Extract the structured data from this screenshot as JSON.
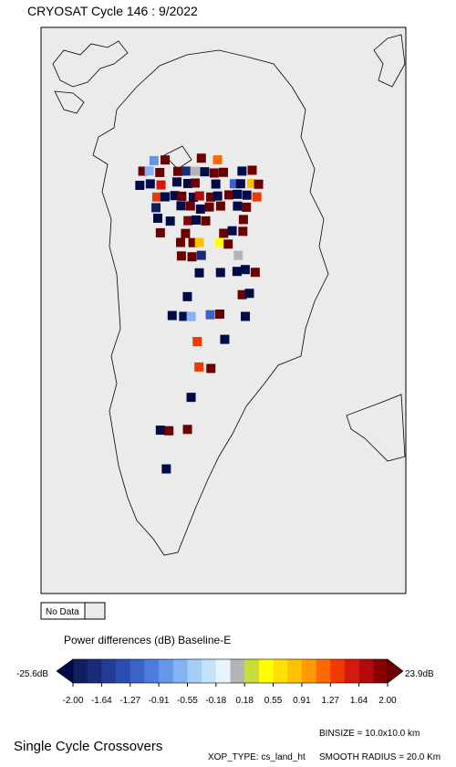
{
  "header": {
    "title": "CRYOSAT Cycle 146 : 9/2022"
  },
  "legend": {
    "no_data": "No Data",
    "no_data_color": "#ebebeb"
  },
  "colorbar": {
    "title": "Power differences (dB) Baseline-E",
    "min_label": "-25.6dB",
    "max_label": "23.9dB",
    "ticks": [
      "-2.00",
      "-1.64",
      "-1.27",
      "-0.91",
      "-0.55",
      "-0.18",
      "0.18",
      "0.55",
      "0.91",
      "1.27",
      "1.64",
      "2.00"
    ],
    "under_color": "#000c4a",
    "over_color": "#6a0000",
    "colors": [
      "#101f60",
      "#1a2c78",
      "#243c95",
      "#2c4cb0",
      "#3a62c8",
      "#4c7cde",
      "#6696ea",
      "#84b2f2",
      "#a6ccf8",
      "#c6e2fb",
      "#e8f4fc",
      "#b4b4b4",
      "#c8dc3c",
      "#ffff00",
      "#ffe000",
      "#ffc000",
      "#ff9a00",
      "#ff6a00",
      "#f03a00",
      "#d41a0a",
      "#b00a0a",
      "#8a0000"
    ]
  },
  "footer": {
    "title": "Single Cycle Crossovers",
    "binsize": "BINSIZE = 10.0x10.0 km",
    "xop_type": "XOP_TYPE: cs_land_ht",
    "smooth_radius": "SMOOTH RADIUS =  20.0 Km"
  }
}
